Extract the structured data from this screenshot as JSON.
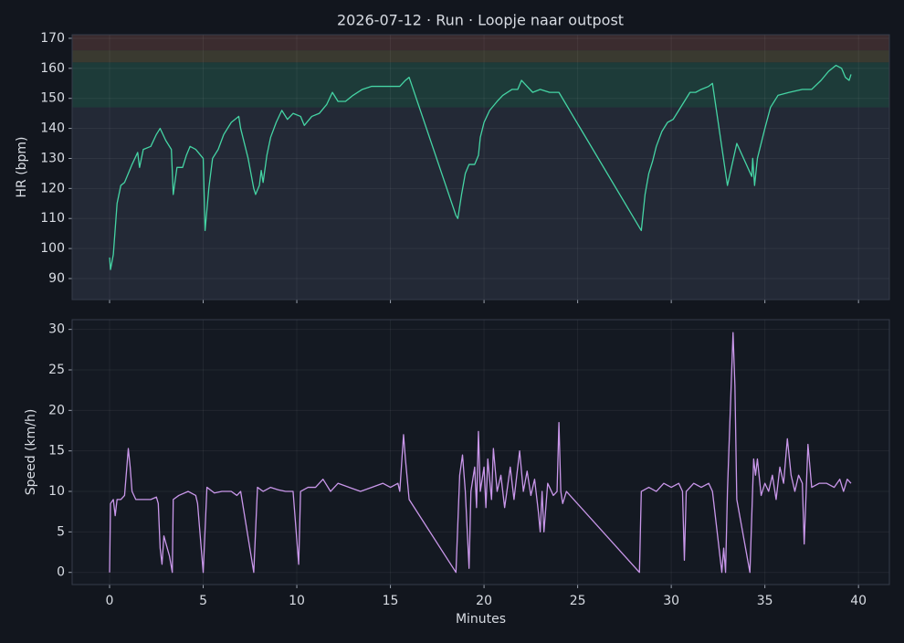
{
  "chart_data": [
    {
      "type": "line",
      "title": "2026-07-12 · Run · Loopje naar outpost",
      "ylabel": "HR (bpm)",
      "color": "#45d4a4",
      "xlim": [
        -2,
        41.65
      ],
      "ylim": [
        83,
        171.2
      ],
      "yticks": [
        90,
        100,
        110,
        120,
        130,
        140,
        150,
        160,
        170
      ],
      "grid": true,
      "zones": [
        {
          "from": 147,
          "to": 162,
          "color": "#1d3b39"
        },
        {
          "from": 162,
          "to": 166,
          "color": "#3a3a30"
        },
        {
          "from": 166,
          "to": 171.2,
          "color": "#3b2c2f"
        }
      ],
      "x": [
        0,
        0.05,
        0.2,
        0.4,
        0.6,
        0.8,
        1.0,
        1.2,
        1.5,
        1.6,
        1.8,
        2.2,
        2.5,
        2.7,
        3.0,
        3.3,
        3.4,
        3.6,
        3.9,
        4.1,
        4.3,
        4.6,
        5.0,
        5.1,
        5.3,
        5.5,
        5.8,
        6.1,
        6.5,
        6.9,
        7.0,
        7.4,
        7.7,
        7.8,
        8.0,
        8.1,
        8.2,
        8.4,
        8.6,
        8.9,
        9.2,
        9.5,
        9.8,
        10.2,
        10.4,
        10.8,
        11.2,
        11.6,
        11.9,
        12.2,
        12.6,
        13.0,
        13.5,
        14.0,
        14.5,
        15.0,
        15.5,
        15.8,
        16.0,
        18.5,
        18.6,
        18.8,
        19.0,
        19.2,
        19.5,
        19.7,
        19.8,
        20.0,
        20.3,
        20.7,
        21.0,
        21.5,
        21.8,
        22.0,
        22.3,
        22.6,
        23.0,
        23.5,
        24.0,
        28.3,
        28.4,
        28.6,
        28.8,
        29.0,
        29.2,
        29.5,
        29.8,
        30.1,
        30.4,
        30.7,
        31.0,
        31.3,
        31.6,
        32.0,
        32.2,
        33.0,
        33.5,
        34.3,
        34.35,
        34.45,
        34.6,
        35.0,
        35.3,
        35.7,
        36.3,
        37.0,
        37.5,
        38.0,
        38.4,
        38.8,
        39.1,
        39.3,
        39.5,
        39.6
      ],
      "values": [
        97,
        93,
        98,
        115,
        121,
        122,
        125,
        128,
        132,
        127,
        133,
        134,
        138,
        140,
        136,
        133,
        118,
        127,
        127,
        131,
        134,
        133,
        130,
        106,
        120,
        130,
        133,
        138,
        142,
        144,
        140,
        130,
        120,
        118,
        121,
        126,
        122,
        131,
        137,
        142,
        146,
        143,
        145,
        144,
        141,
        144,
        145,
        148,
        152,
        149,
        149,
        151,
        153,
        154,
        154,
        154,
        154,
        156,
        157,
        111,
        110,
        118,
        125,
        128,
        128,
        131,
        137,
        142,
        146,
        149,
        151,
        153,
        153,
        156,
        154,
        152,
        153,
        152,
        152,
        107,
        106,
        118,
        125,
        129,
        134,
        139,
        142,
        143,
        146,
        149,
        152,
        152,
        153,
        154,
        155,
        121,
        135,
        124,
        130,
        121,
        130,
        140,
        147,
        151,
        152,
        153,
        153,
        156,
        159,
        161,
        160,
        157,
        156,
        158
      ]
    },
    {
      "type": "line",
      "ylabel": "Speed (km/h)",
      "xlabel": "Minutes",
      "color": "#c997ea",
      "xlim": [
        -2,
        41.65
      ],
      "ylim": [
        -1.5,
        31.2
      ],
      "xticks": [
        0,
        5,
        10,
        15,
        20,
        25,
        30,
        35,
        40
      ],
      "yticks": [
        0,
        5,
        10,
        15,
        20,
        25,
        30
      ],
      "grid": true,
      "x": [
        0,
        0.05,
        0.2,
        0.3,
        0.4,
        0.6,
        0.8,
        1.0,
        1.1,
        1.2,
        1.4,
        1.8,
        2.2,
        2.5,
        2.6,
        2.7,
        2.8,
        2.9,
        3.2,
        3.35,
        3.4,
        3.7,
        4.2,
        4.6,
        4.7,
        5.0,
        5.2,
        5.6,
        6.0,
        6.5,
        6.8,
        7.0,
        7.7,
        7.9,
        8.2,
        8.6,
        9.0,
        9.4,
        9.8,
        10.1,
        10.2,
        10.6,
        11.0,
        11.4,
        11.8,
        12.2,
        12.8,
        13.4,
        14.0,
        14.6,
        15.0,
        15.4,
        15.5,
        15.7,
        15.8,
        16.0,
        18.5,
        18.7,
        18.85,
        19.0,
        19.2,
        19.3,
        19.5,
        19.6,
        19.7,
        19.8,
        20.0,
        20.1,
        20.2,
        20.4,
        20.5,
        20.7,
        20.9,
        21.1,
        21.4,
        21.6,
        21.9,
        22.1,
        22.3,
        22.5,
        22.7,
        22.9,
        23.0,
        23.1,
        23.2,
        23.4,
        23.7,
        23.9,
        24.0,
        24.1,
        24.2,
        24.4,
        28.3,
        28.4,
        28.8,
        29.2,
        29.6,
        30.0,
        30.4,
        30.6,
        30.7,
        30.8,
        31.2,
        31.6,
        32.0,
        32.2,
        32.7,
        32.8,
        32.9,
        33.0,
        33.3,
        33.4,
        33.5,
        34.2,
        34.4,
        34.5,
        34.6,
        34.8,
        35.0,
        35.2,
        35.4,
        35.6,
        35.8,
        36.0,
        36.2,
        36.4,
        36.6,
        36.8,
        37.0,
        37.1,
        37.3,
        37.5,
        37.9,
        38.3,
        38.7,
        39.0,
        39.2,
        39.4,
        39.6
      ],
      "values": [
        0,
        8.5,
        9,
        7,
        9,
        9,
        9.5,
        15.3,
        13,
        10,
        9,
        9,
        9,
        9.3,
        8.5,
        3,
        1,
        4.5,
        2,
        0,
        9,
        9.5,
        10,
        9.5,
        8.5,
        0,
        10.5,
        9.8,
        10,
        10,
        9.5,
        10,
        0,
        10.5,
        10,
        10.5,
        10.2,
        10,
        10,
        1,
        10,
        10.5,
        10.5,
        11.5,
        10,
        11,
        10.5,
        10,
        10.5,
        11,
        10.5,
        11,
        10,
        17,
        14,
        9,
        0,
        12,
        14.5,
        10,
        0.5,
        10,
        13,
        8,
        17.4,
        10,
        13,
        8,
        14,
        9,
        15.3,
        10,
        12,
        8,
        13,
        9,
        15,
        10,
        12.5,
        9.5,
        11.5,
        7.5,
        5,
        10,
        5,
        11,
        9.5,
        10,
        18.5,
        10,
        8.5,
        10,
        0,
        10,
        10.5,
        10,
        11,
        10.5,
        11,
        10,
        1.5,
        10,
        11,
        10.5,
        11,
        10,
        0,
        3,
        0,
        10,
        29.6,
        23,
        9,
        0,
        14,
        12,
        14,
        9.5,
        11,
        10,
        12,
        9,
        13,
        11,
        16.5,
        12,
        10,
        12,
        11,
        3.5,
        15.8,
        10.5,
        11,
        11,
        10.5,
        11.5,
        10,
        11.5,
        11
      ]
    }
  ]
}
